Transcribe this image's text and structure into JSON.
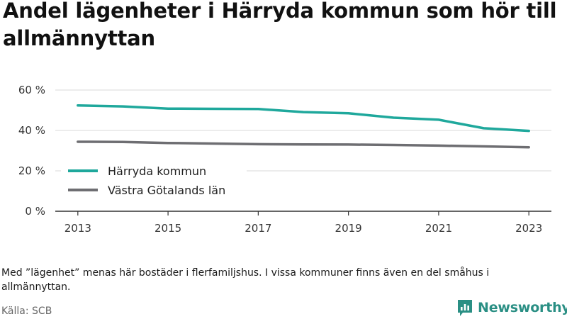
{
  "title": "Andel lägenheter i Härryda kommun som hör till allmännyttan",
  "note": "Med ”lägenhet” menas här bostäder i flerfamiljshus. I vissa kommuner finns även en del småhus i allmännyttan.",
  "source": "Källa: SCB",
  "brand": {
    "name": "Newsworthy",
    "icon": "newsworthy-logo-icon",
    "color": "#2a8f84"
  },
  "chart_data": {
    "type": "line",
    "title": "Andel lägenheter i Härryda kommun som hör till allmännyttan",
    "xlabel": "",
    "ylabel": "",
    "x": [
      2013,
      2014,
      2015,
      2016,
      2017,
      2018,
      2019,
      2020,
      2021,
      2022,
      2023
    ],
    "x_ticks": [
      "2013",
      "2015",
      "2017",
      "2019",
      "2021",
      "2023"
    ],
    "x_tick_values": [
      2013,
      2015,
      2017,
      2019,
      2021,
      2023
    ],
    "y_ticks": [
      "0 %",
      "20 %",
      "40 %",
      "60 %"
    ],
    "y_tick_values": [
      0,
      20,
      40,
      60
    ],
    "xlim": [
      2012.5,
      2023.5
    ],
    "ylim": [
      0,
      60
    ],
    "grid": true,
    "legend_position": "lower-left",
    "series": [
      {
        "name": "Härryda kommun",
        "color": "#1fa89c",
        "values": [
          52.4,
          51.9,
          50.8,
          50.7,
          50.6,
          49.1,
          48.5,
          46.3,
          45.3,
          41.1,
          39.8
        ]
      },
      {
        "name": "Västra Götalands län",
        "color": "#6e6e72",
        "values": [
          34.4,
          34.3,
          33.8,
          33.5,
          33.2,
          33.1,
          33.0,
          32.8,
          32.5,
          32.1,
          31.7
        ]
      }
    ]
  }
}
